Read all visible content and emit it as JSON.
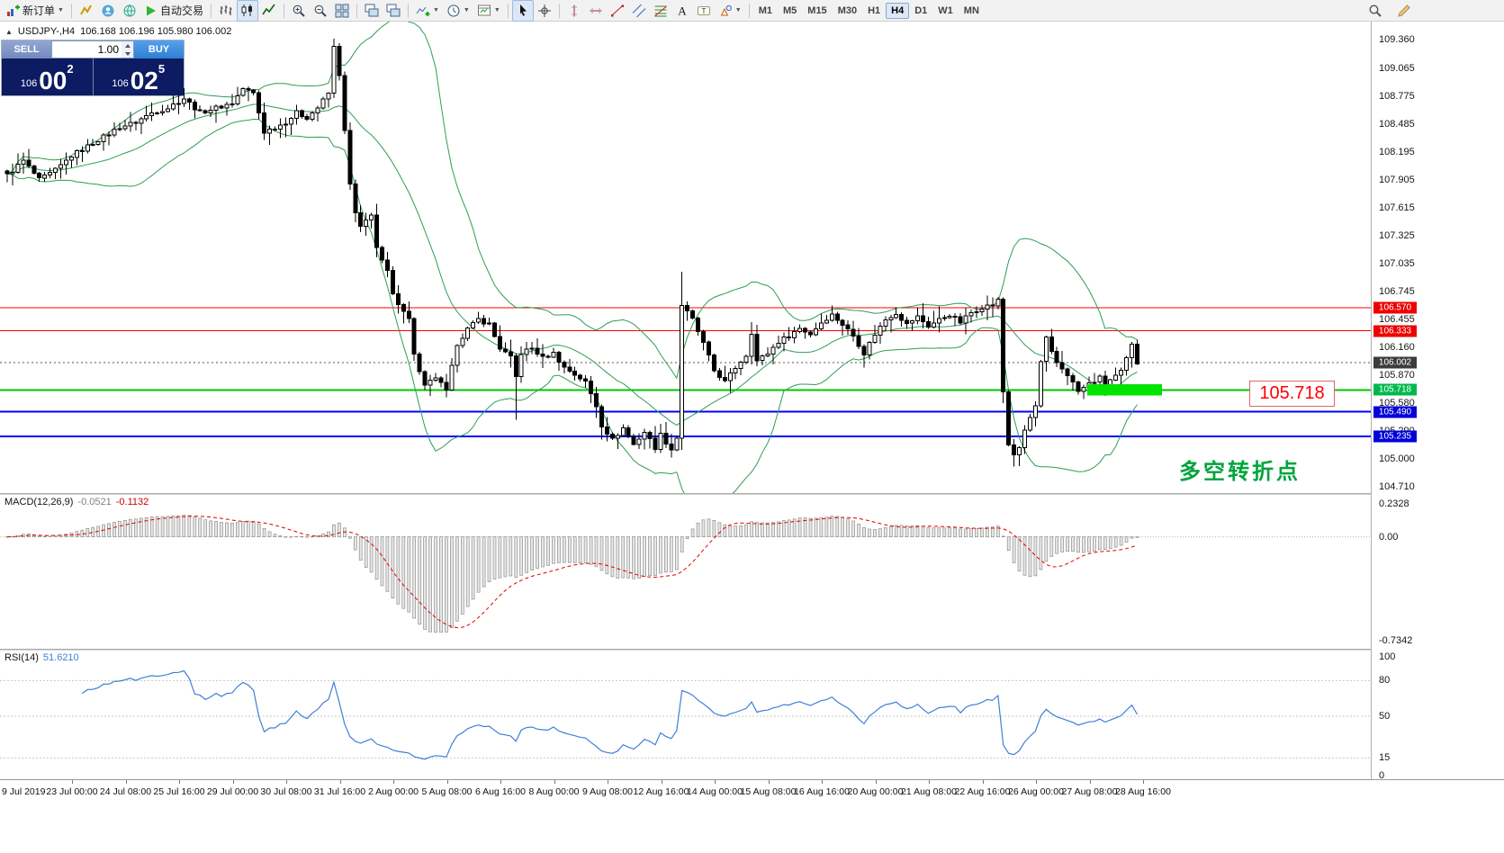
{
  "toolbar": {
    "groups": [
      [
        {
          "icon": "new-order",
          "label": "新订单",
          "dropdown": true,
          "name": "new-order-button"
        }
      ],
      [
        {
          "icon": "charts",
          "name": "charts-button"
        },
        {
          "icon": "profile",
          "name": "profile-button"
        },
        {
          "icon": "community",
          "name": "community-button"
        },
        {
          "icon": "play",
          "label": "自动交易",
          "name": "autotrade-button"
        }
      ],
      [
        {
          "icon": "bars",
          "name": "bar-chart-button"
        },
        {
          "icon": "candles",
          "name": "candlestick-chart-button",
          "active": true
        },
        {
          "icon": "linechart",
          "name": "line-chart-button"
        }
      ],
      [
        {
          "icon": "zoom-in",
          "name": "zoom-in-button"
        },
        {
          "icon": "zoom-out",
          "name": "zoom-out-button"
        },
        {
          "icon": "tile",
          "name": "tile-windows-button"
        }
      ],
      [
        {
          "icon": "cascade",
          "name": "arrange-windows-button"
        },
        {
          "icon": "cascade",
          "name": "cascade-windows-button"
        }
      ],
      [
        {
          "icon": "indicators",
          "dropdown": true,
          "name": "indicators-button"
        },
        {
          "icon": "clock",
          "dropdown": true,
          "name": "periods-button"
        },
        {
          "icon": "template",
          "dropdown": true,
          "name": "templates-button"
        }
      ],
      [
        {
          "icon": "cursor",
          "name": "cursor-button",
          "active": true
        },
        {
          "icon": "crosshair",
          "name": "crosshair-button"
        }
      ],
      [
        {
          "icon": "vline",
          "name": "vertical-line-button"
        },
        {
          "icon": "hline",
          "name": "horizontal-line-button"
        },
        {
          "icon": "trendline",
          "name": "trendline-button"
        },
        {
          "icon": "channel",
          "name": "channel-button"
        },
        {
          "icon": "fibonacci",
          "name": "fibonacci-button"
        },
        {
          "icon": "text",
          "name": "text-button"
        },
        {
          "icon": "label",
          "name": "label-button"
        },
        {
          "icon": "shapes",
          "dropdown": true,
          "name": "shapes-button"
        }
      ]
    ],
    "timeframes": [
      "M1",
      "M5",
      "M15",
      "M30",
      "H1",
      "H4",
      "D1",
      "W1",
      "MN"
    ],
    "active_timeframe": "H4",
    "right": [
      {
        "icon": "search",
        "name": "search-button"
      },
      {
        "icon": "edit",
        "name": "quick-edit-button"
      }
    ]
  },
  "chart": {
    "collapse_glyph": "▲",
    "symbol_period": "USDJPY-,H4",
    "ohlc": "106.168 106.196 105.980 106.002"
  },
  "trade_panel": {
    "sell_label": "SELL",
    "buy_label": "BUY",
    "volume": "1.00",
    "bid_prefix": "106",
    "bid_big": "00",
    "bid_sup": "2",
    "ask_prefix": "106",
    "ask_big": "02",
    "ask_sup": "5"
  },
  "price_axis": {
    "labels": [
      "109.360",
      "109.065",
      "108.775",
      "108.485",
      "108.195",
      "107.905",
      "107.615",
      "107.325",
      "107.035",
      "106.745",
      "106.455",
      "106.160",
      "105.870",
      "105.580",
      "105.290",
      "105.000",
      "104.710"
    ]
  },
  "macd": {
    "label": "MACD(12,26,9)",
    "value_main": "-0.0521",
    "value_signal": "-0.1132",
    "scale": [
      {
        "text": "0.2328",
        "v": 0.2328
      },
      {
        "text": "0.00",
        "v": 0
      },
      {
        "text": "-0.7342",
        "v": -0.7342
      }
    ]
  },
  "rsi": {
    "label": "RSI(14)",
    "value": "51.6210",
    "scale": [
      {
        "text": "100",
        "v": 100
      },
      {
        "text": "80",
        "v": 80
      },
      {
        "text": "50",
        "v": 50
      },
      {
        "text": "15",
        "v": 15
      },
      {
        "text": "0",
        "v": 0
      }
    ],
    "levels": [
      80,
      50,
      15
    ]
  },
  "annotations": {
    "price_label": "105.718",
    "cn_text": "多空转折点"
  },
  "time_axis": {
    "labels": [
      "9 Jul 2019",
      "23 Jul 00:00",
      "24 Jul 08:00",
      "25 Jul 16:00",
      "29 Jul 00:00",
      "30 Jul 08:00",
      "31 Jul 16:00",
      "2 Aug 00:00",
      "5 Aug 08:00",
      "6 Aug 16:00",
      "8 Aug 00:00",
      "9 Aug 08:00",
      "12 Aug 16:00",
      "14 Aug 00:00",
      "15 Aug 08:00",
      "16 Aug 16:00",
      "20 Aug 00:00",
      "21 Aug 08:00",
      "22 Aug 16:00",
      "26 Aug 00:00",
      "27 Aug 08:00",
      "28 Aug 16:00"
    ]
  },
  "colors": {
    "bull": "#ffffff",
    "bear": "#000000",
    "candle_outline": "#000000",
    "bollinger": "#2e9e52",
    "red_line": "#ff0000",
    "green_line": "#00c800",
    "green_zone": "#00e400",
    "blue_line": "#0000ff",
    "current_line": "#555555",
    "current_badge": "#3c3c3c",
    "hist_fill": "#e6e6e6",
    "hist_stroke": "#8f8f8f",
    "signal": "#e00000",
    "rsi_line": "#3f80d8",
    "level_dotted": "#c8c8c8"
  },
  "chart_data": {
    "type": "candlestick",
    "symbol": "USDJPY",
    "period": "H4",
    "ohlc_display": {
      "open": 106.168,
      "high": 106.196,
      "low": 105.98,
      "close": 106.002
    },
    "ylim": [
      104.71,
      109.36
    ],
    "count": 212,
    "noise": 0.045,
    "waypoints": [
      [
        0,
        107.95
      ],
      [
        3,
        108.1
      ],
      [
        6,
        107.9
      ],
      [
        9,
        108.0
      ],
      [
        12,
        108.15
      ],
      [
        15,
        108.25
      ],
      [
        18,
        108.35
      ],
      [
        21,
        108.45
      ],
      [
        24,
        108.5
      ],
      [
        27,
        108.6
      ],
      [
        30,
        108.65
      ],
      [
        33,
        108.75
      ],
      [
        36,
        108.6
      ],
      [
        39,
        108.65
      ],
      [
        42,
        108.7
      ],
      [
        44,
        108.85
      ],
      [
        46,
        108.8
      ],
      [
        48,
        108.4
      ],
      [
        50,
        108.45
      ],
      [
        52,
        108.5
      ],
      [
        54,
        108.6
      ],
      [
        56,
        108.55
      ],
      [
        58,
        108.65
      ],
      [
        60,
        108.8
      ],
      [
        61,
        109.28
      ],
      [
        62,
        109.0
      ],
      [
        63,
        108.4
      ],
      [
        64,
        107.85
      ],
      [
        65,
        107.55
      ],
      [
        66,
        107.4
      ],
      [
        68,
        107.55
      ],
      [
        69,
        107.2
      ],
      [
        70,
        107.05
      ],
      [
        71,
        106.95
      ],
      [
        72,
        106.7
      ],
      [
        74,
        106.55
      ],
      [
        75,
        106.45
      ],
      [
        76,
        106.1
      ],
      [
        77,
        105.9
      ],
      [
        78,
        105.75
      ],
      [
        80,
        105.85
      ],
      [
        82,
        105.7
      ],
      [
        83,
        105.95
      ],
      [
        84,
        106.2
      ],
      [
        86,
        106.35
      ],
      [
        88,
        106.45
      ],
      [
        90,
        106.4
      ],
      [
        92,
        106.15
      ],
      [
        94,
        106.05
      ],
      [
        95,
        105.85
      ],
      [
        96,
        106.1
      ],
      [
        98,
        106.15
      ],
      [
        100,
        106.05
      ],
      [
        102,
        106.1
      ],
      [
        104,
        105.95
      ],
      [
        106,
        105.88
      ],
      [
        108,
        105.8
      ],
      [
        110,
        105.55
      ],
      [
        111,
        105.35
      ],
      [
        113,
        105.2
      ],
      [
        115,
        105.32
      ],
      [
        117,
        105.15
      ],
      [
        119,
        105.28
      ],
      [
        121,
        105.12
      ],
      [
        122,
        105.25
      ],
      [
        124,
        105.1
      ],
      [
        125,
        105.22
      ],
      [
        126,
        106.6
      ],
      [
        128,
        106.45
      ],
      [
        130,
        106.2
      ],
      [
        132,
        105.92
      ],
      [
        134,
        105.8
      ],
      [
        136,
        105.95
      ],
      [
        138,
        106.08
      ],
      [
        139,
        106.32
      ],
      [
        140,
        106.02
      ],
      [
        142,
        106.1
      ],
      [
        144,
        106.22
      ],
      [
        146,
        106.28
      ],
      [
        148,
        106.36
      ],
      [
        150,
        106.3
      ],
      [
        152,
        106.42
      ],
      [
        154,
        106.5
      ],
      [
        156,
        106.4
      ],
      [
        158,
        106.28
      ],
      [
        160,
        106.1
      ],
      [
        162,
        106.3
      ],
      [
        164,
        106.45
      ],
      [
        166,
        106.52
      ],
      [
        168,
        106.4
      ],
      [
        170,
        106.48
      ],
      [
        172,
        106.38
      ],
      [
        174,
        106.45
      ],
      [
        176,
        106.5
      ],
      [
        178,
        106.42
      ],
      [
        180,
        106.52
      ],
      [
        182,
        106.58
      ],
      [
        184,
        106.6
      ],
      [
        185,
        106.65
      ],
      [
        186,
        105.7
      ],
      [
        187,
        105.15
      ],
      [
        188,
        105.05
      ],
      [
        189,
        105.1
      ],
      [
        190,
        105.3
      ],
      [
        192,
        105.55
      ],
      [
        193,
        106.0
      ],
      [
        194,
        106.25
      ],
      [
        195,
        106.1
      ],
      [
        196,
        106.0
      ],
      [
        198,
        105.88
      ],
      [
        200,
        105.7
      ],
      [
        202,
        105.78
      ],
      [
        204,
        105.84
      ],
      [
        205,
        105.78
      ],
      [
        206,
        105.82
      ],
      [
        208,
        105.9
      ],
      [
        210,
        106.18
      ],
      [
        211,
        106.0
      ]
    ],
    "wick_overrides": [
      [
        61,
        0.08,
        0.05
      ],
      [
        95,
        0.03,
        0.45
      ],
      [
        126,
        0.35,
        0.12
      ],
      [
        188,
        0.06,
        0.12
      ]
    ],
    "bollinger": {
      "period": 20,
      "deviation": 2
    },
    "hlines": [
      {
        "price": 106.57,
        "color": "#ff0000",
        "w": 1,
        "badge": "106.570",
        "badge_bg": "#ee0000"
      },
      {
        "price": 106.333,
        "color": "#ff0000",
        "w": 1,
        "badge": "106.333",
        "badge_bg": "#ee0000"
      },
      {
        "price": 106.002,
        "color": "#555555",
        "w": 1,
        "style": "current",
        "badge": "106.002",
        "badge_bg": "#3c3c3c"
      },
      {
        "price": 105.718,
        "color": "#00c800",
        "w": 2,
        "badge": "105.718",
        "badge_bg": "#00b94e"
      },
      {
        "price": 105.49,
        "color": "#0000ff",
        "w": 2,
        "badge": "105.490",
        "badge_bg": "#0000d8"
      },
      {
        "price": 105.235,
        "color": "#0000ff",
        "w": 2,
        "badge": "105.235",
        "badge_bg": "#0000d8"
      }
    ],
    "green_zone": {
      "price": 105.718,
      "start_index": 202,
      "end_index": 216,
      "half_height_price": 0.06
    },
    "macd": {
      "params": "12,26,9",
      "main": -0.0521,
      "signal": -0.1132,
      "scale_max": 0.2328,
      "scale_min": -0.7342
    },
    "rsi": {
      "period": 14,
      "value": 51.621,
      "levels": [
        80,
        50,
        15
      ]
    }
  }
}
